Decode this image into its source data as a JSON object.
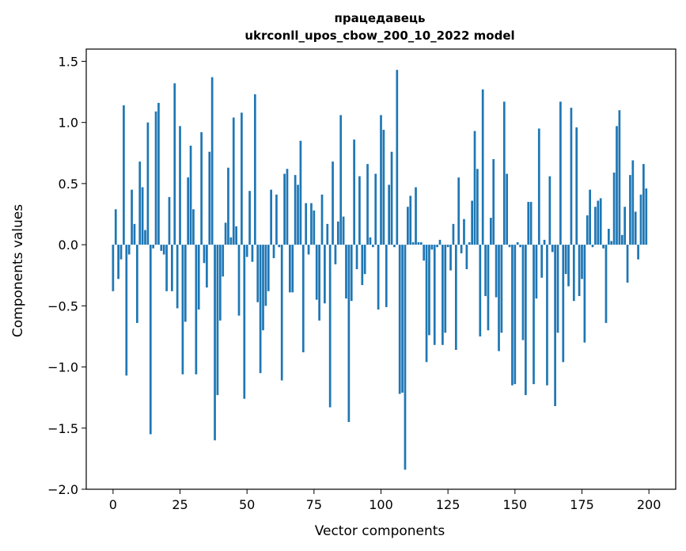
{
  "chart_data": {
    "type": "bar",
    "title": "працедавець",
    "subtitle": "ukrconll_upos_cbow_200_10_2022 model",
    "xlabel": "Vector components",
    "ylabel": "Components values",
    "xlim": [
      -10,
      210
    ],
    "ylim": [
      -2.0,
      1.6
    ],
    "xticks": [
      0,
      25,
      50,
      75,
      100,
      125,
      150,
      175,
      200
    ],
    "yticks": [
      -2.0,
      -1.5,
      -1.0,
      -0.5,
      0.0,
      0.5,
      1.0,
      1.5
    ],
    "ytick_labels": [
      "−2.0",
      "−1.5",
      "−1.0",
      "−0.5",
      "0.0",
      "0.5",
      "1.0",
      "1.5"
    ],
    "grid": false,
    "color": "#1f77b4",
    "values": [
      -0.38,
      0.29,
      -0.28,
      -0.12,
      1.14,
      -1.07,
      -0.08,
      0.45,
      0.17,
      -0.64,
      0.68,
      0.47,
      0.12,
      1.0,
      -1.55,
      -0.03,
      1.09,
      1.16,
      -0.05,
      -0.08,
      -0.38,
      0.39,
      -0.38,
      1.32,
      -0.52,
      0.97,
      -1.06,
      -0.63,
      0.55,
      0.81,
      0.29,
      -1.06,
      -0.53,
      0.92,
      -0.15,
      -0.35,
      0.76,
      1.37,
      -1.6,
      -1.23,
      -0.62,
      -0.26,
      0.18,
      0.63,
      0.06,
      1.04,
      0.15,
      -0.58,
      1.08,
      -1.26,
      -0.1,
      0.44,
      -0.14,
      1.23,
      -0.47,
      -1.05,
      -0.7,
      -0.5,
      -0.38,
      0.45,
      -0.11,
      0.41,
      -0.02,
      -1.11,
      0.58,
      0.62,
      -0.39,
      -0.39,
      0.57,
      0.49,
      0.85,
      -0.88,
      0.34,
      -0.08,
      0.34,
      0.28,
      -0.45,
      -0.62,
      0.41,
      -0.48,
      0.17,
      -1.33,
      0.68,
      -0.16,
      0.19,
      1.06,
      0.23,
      -0.44,
      -1.45,
      -0.46,
      0.86,
      -0.2,
      0.56,
      -0.33,
      -0.24,
      0.66,
      0.06,
      -0.02,
      0.58,
      -0.53,
      1.06,
      0.94,
      -0.51,
      0.49,
      0.76,
      -0.02,
      1.43,
      -1.22,
      -1.21,
      -1.84,
      0.31,
      0.4,
      0.02,
      0.47,
      0.02,
      0.02,
      -0.13,
      -0.96,
      -0.74,
      -0.04,
      -0.82,
      -0.02,
      0.04,
      -0.82,
      -0.72,
      -0.02,
      -0.21,
      0.17,
      -0.86,
      0.55,
      -0.07,
      0.21,
      -0.2,
      0.02,
      0.36,
      0.93,
      0.62,
      -0.75,
      1.27,
      -0.42,
      -0.7,
      0.22,
      0.7,
      -0.43,
      -0.87,
      -0.72,
      1.17,
      0.58,
      -0.02,
      -1.15,
      -1.14,
      0.02,
      -0.02,
      -0.78,
      -1.23,
      0.35,
      0.35,
      -1.14,
      -0.44,
      0.95,
      -0.27,
      0.04,
      -1.15,
      0.56,
      -0.06,
      -1.32,
      -0.72,
      1.17,
      -0.96,
      -0.24,
      -0.34,
      1.12,
      -0.46,
      0.96,
      -0.42,
      -0.28,
      -0.8,
      0.24,
      0.45,
      -0.02,
      0.31,
      0.36,
      0.38,
      -0.03,
      -0.64,
      0.13,
      0.03,
      0.59,
      0.97,
      1.1,
      0.08,
      0.31,
      -0.31,
      0.57,
      0.69,
      0.27,
      -0.12,
      0.41,
      0.66,
      0.46
    ]
  }
}
